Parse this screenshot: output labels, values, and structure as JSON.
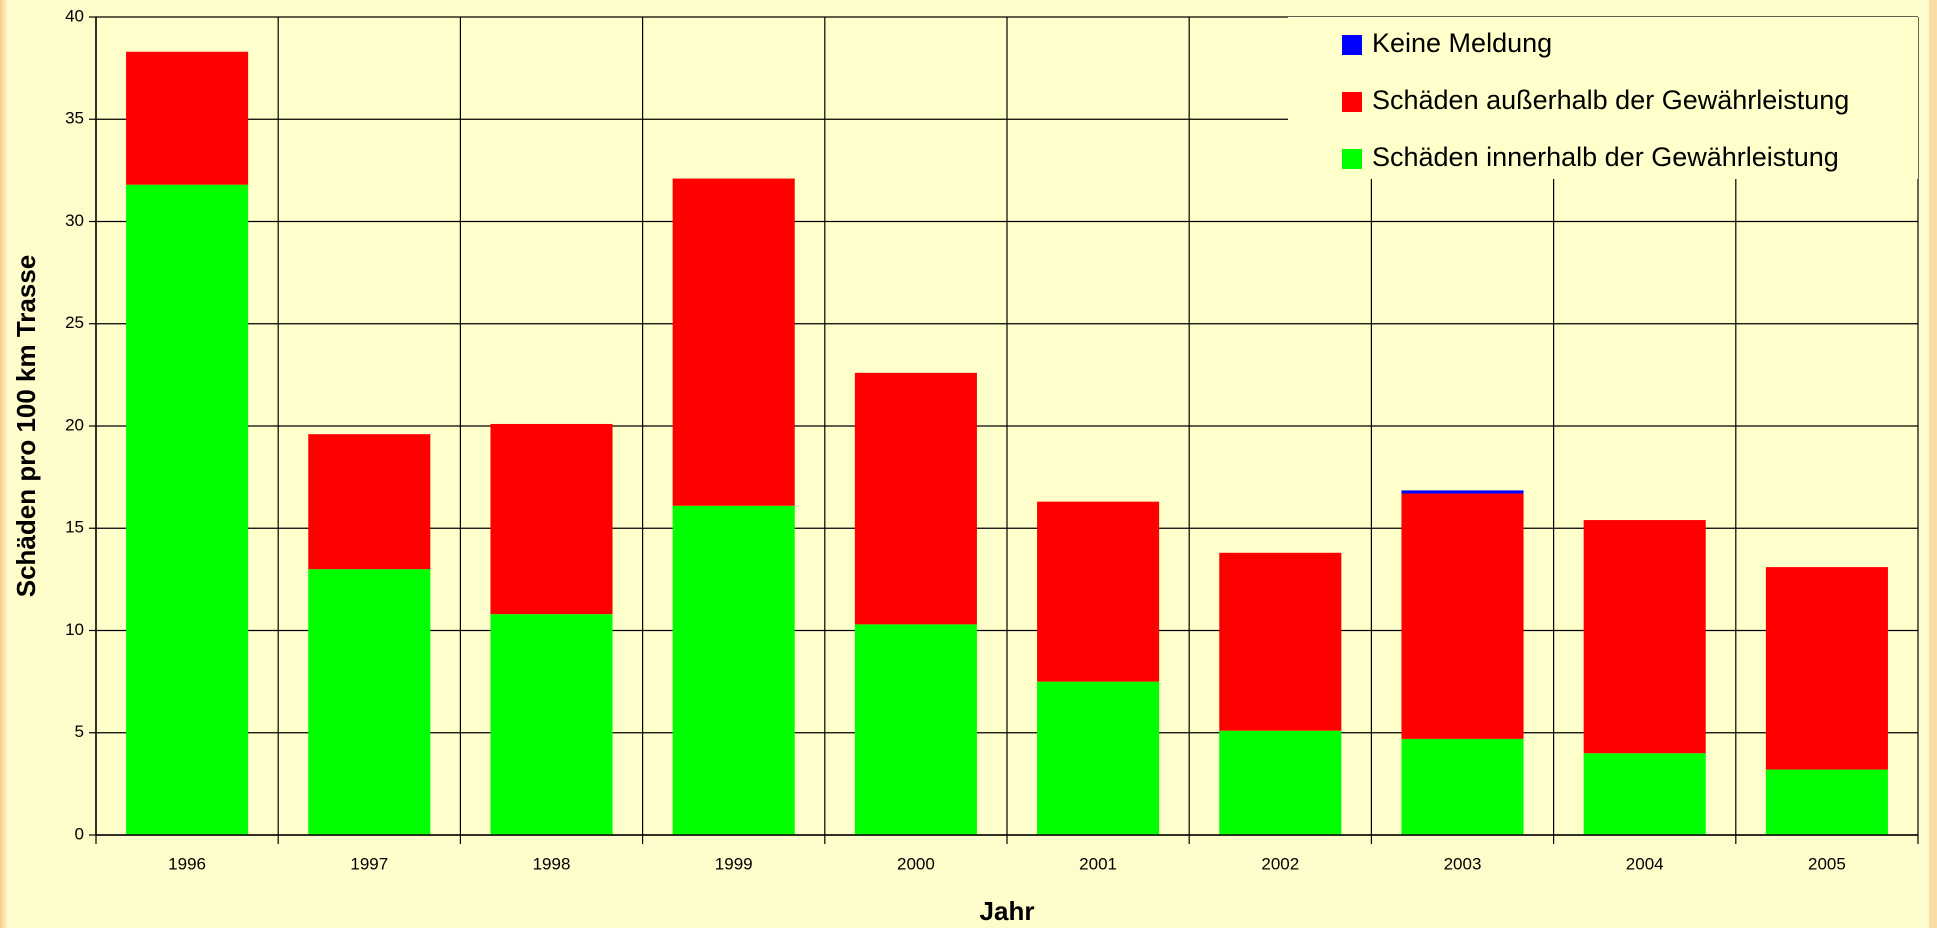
{
  "chart_data": {
    "type": "stacked_bar",
    "x_label": "Jahr",
    "y_label": "Schäden pro 100 km Trasse",
    "categories": [
      "1996",
      "1997",
      "1998",
      "1999",
      "2000",
      "2001",
      "2002",
      "2003",
      "2004",
      "2005"
    ],
    "series": [
      {
        "name": "Schäden innerhalb der Gewährleistung",
        "color": "#00ff00",
        "values": [
          31.8,
          13.0,
          10.8,
          16.1,
          10.3,
          7.5,
          5.1,
          4.7,
          4.0,
          3.2
        ]
      },
      {
        "name": "Schäden außerhalb der Gewährleistung",
        "color": "#ff0000",
        "values": [
          6.5,
          6.6,
          9.3,
          16.0,
          12.3,
          8.8,
          8.7,
          12.0,
          11.4,
          9.9
        ]
      },
      {
        "name": "Keine Meldung",
        "color": "#0000ff",
        "values": [
          0,
          0,
          0,
          0,
          0,
          0,
          0,
          0.15,
          0,
          0
        ]
      }
    ],
    "ylim": [
      0,
      40
    ],
    "yticks": [
      0,
      5,
      10,
      15,
      20,
      25,
      30,
      35,
      40
    ],
    "grid": true,
    "legend": "upper right"
  }
}
